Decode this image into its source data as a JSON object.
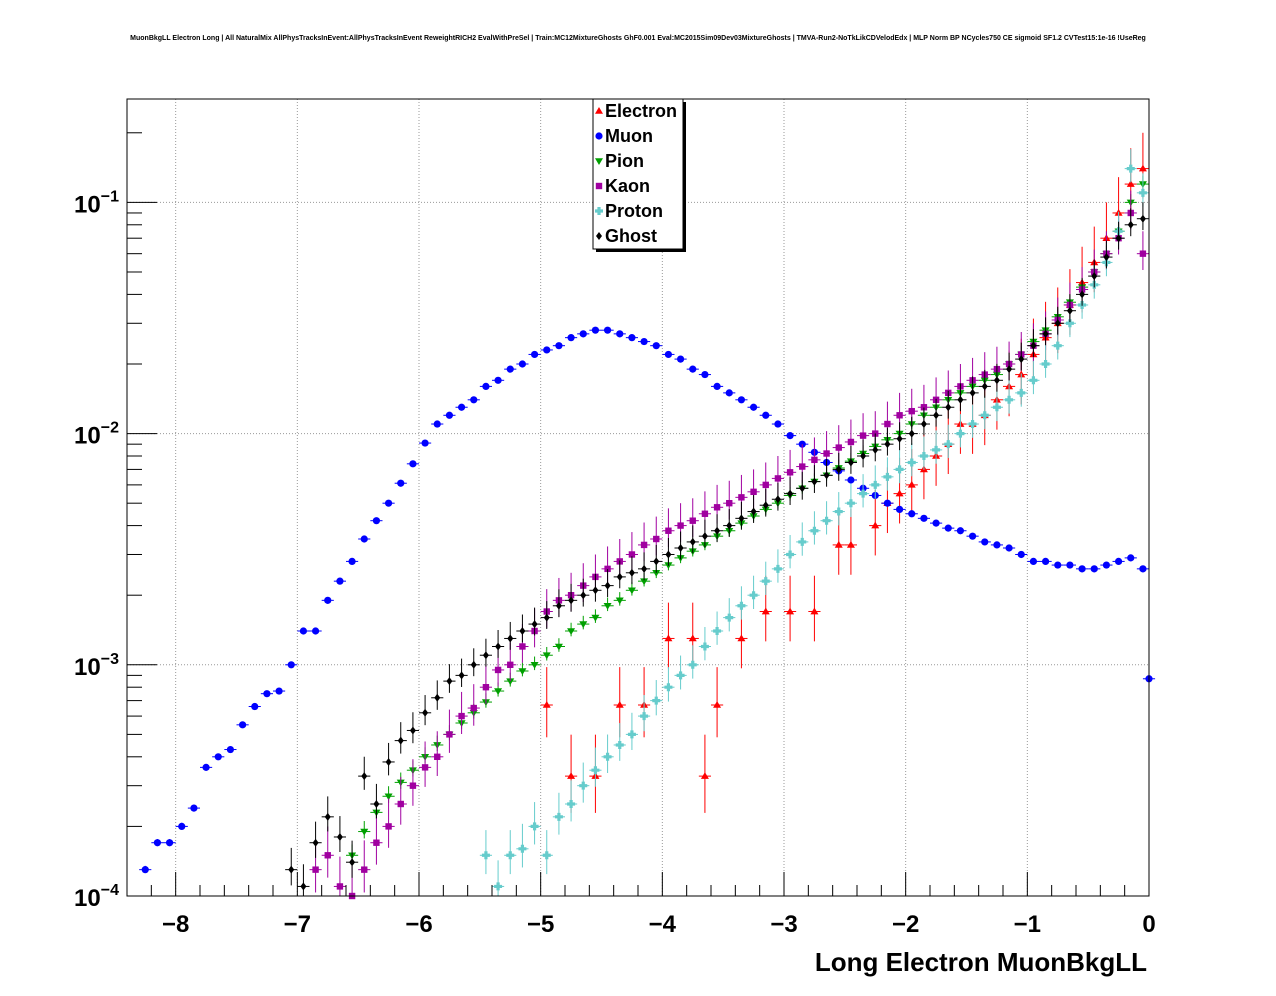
{
  "title": "MuonBkgLL Electron Long | All NaturalMix AllPhysTracksInEvent:AllPhysTracksInEvent ReweightRICH2 EvalWithPreSel | Train:MC12MixtureGhosts GhF0.001 Eval:MC2015Sim09Dev03MixtureGhosts | TMVA-Run2-NoTkLikCDVelodEdx | MLP Norm BP NCycles750 CE sigmoid SF1.2 CVTest15:1e-16 !UseReg",
  "chart_data": {
    "type": "scatter",
    "xlabel": "Long Electron MuonBkgLL",
    "ylabel": "",
    "xlim": [
      -8.4,
      0
    ],
    "ylim": [
      0.0001,
      0.28
    ],
    "ylog": true,
    "grid": true,
    "legend_position": "top-center",
    "x_ticks": [
      {
        "value": -8,
        "label": "−8"
      },
      {
        "value": -7,
        "label": "−7"
      },
      {
        "value": -6,
        "label": "−6"
      },
      {
        "value": -5,
        "label": "−5"
      },
      {
        "value": -4,
        "label": "−4"
      },
      {
        "value": -3,
        "label": "−3"
      },
      {
        "value": -2,
        "label": "−2"
      },
      {
        "value": -1,
        "label": "−1"
      },
      {
        "value": 0,
        "label": "0"
      }
    ],
    "y_ticks": [
      {
        "value": 0.0001,
        "base": "10",
        "exp": "−4"
      },
      {
        "value": 0.001,
        "base": "10",
        "exp": "−3"
      },
      {
        "value": 0.01,
        "base": "10",
        "exp": "−2"
      },
      {
        "value": 0.1,
        "base": "10",
        "exp": "−1"
      }
    ],
    "series": [
      {
        "name": "Electron",
        "color": "#ff0000",
        "marker": "triangle-up",
        "err": 0.6,
        "x": [
          -4.95,
          -4.75,
          -4.55,
          -4.35,
          -4.15,
          -3.95,
          -3.75,
          -3.65,
          -3.55,
          -3.35,
          -3.15,
          -2.95,
          -2.75,
          -2.55,
          -2.45,
          -2.25,
          -2.15,
          -2.05,
          -1.95,
          -1.85,
          -1.75,
          -1.65,
          -1.55,
          -1.45,
          -1.35,
          -1.25,
          -1.15,
          -1.05,
          -0.95,
          -0.85,
          -0.75,
          -0.65,
          -0.55,
          -0.45,
          -0.35,
          -0.25,
          -0.15,
          -0.05
        ],
        "y": [
          0.00067,
          0.00033,
          0.00033,
          0.00067,
          0.00067,
          0.0013,
          0.0013,
          0.00033,
          0.00067,
          0.0013,
          0.0017,
          0.0017,
          0.0017,
          0.0033,
          0.0033,
          0.004,
          0.005,
          0.0055,
          0.006,
          0.007,
          0.008,
          0.009,
          0.011,
          0.011,
          0.012,
          0.014,
          0.016,
          0.018,
          0.022,
          0.026,
          0.03,
          0.036,
          0.045,
          0.055,
          0.07,
          0.09,
          0.12,
          0.14
        ]
      },
      {
        "name": "Muon",
        "color": "#0000ff",
        "marker": "circle",
        "err": 0.04,
        "x": [
          -8.25,
          -8.15,
          -8.05,
          -7.95,
          -7.85,
          -7.75,
          -7.65,
          -7.55,
          -7.45,
          -7.35,
          -7.25,
          -7.15,
          -7.05,
          -6.95,
          -6.85,
          -6.75,
          -6.65,
          -6.55,
          -6.45,
          -6.35,
          -6.25,
          -6.15,
          -6.05,
          -5.95,
          -5.85,
          -5.75,
          -5.65,
          -5.55,
          -5.45,
          -5.35,
          -5.25,
          -5.15,
          -5.05,
          -4.95,
          -4.85,
          -4.75,
          -4.65,
          -4.55,
          -4.45,
          -4.35,
          -4.25,
          -4.15,
          -4.05,
          -3.95,
          -3.85,
          -3.75,
          -3.65,
          -3.55,
          -3.45,
          -3.35,
          -3.25,
          -3.15,
          -3.05,
          -2.95,
          -2.85,
          -2.75,
          -2.65,
          -2.55,
          -2.45,
          -2.35,
          -2.25,
          -2.15,
          -2.05,
          -1.95,
          -1.85,
          -1.75,
          -1.65,
          -1.55,
          -1.45,
          -1.35,
          -1.25,
          -1.15,
          -1.05,
          -0.95,
          -0.85,
          -0.75,
          -0.65,
          -0.55,
          -0.45,
          -0.35,
          -0.25,
          -0.15,
          -0.05,
          0.0
        ],
        "y": [
          0.00013,
          0.00017,
          0.00017,
          0.0002,
          0.00024,
          0.00036,
          0.0004,
          0.00043,
          0.00055,
          0.00066,
          0.00075,
          0.00077,
          0.001,
          0.0014,
          0.0014,
          0.0019,
          0.0023,
          0.0028,
          0.0035,
          0.0042,
          0.005,
          0.0061,
          0.0074,
          0.0091,
          0.011,
          0.012,
          0.013,
          0.014,
          0.016,
          0.017,
          0.019,
          0.02,
          0.022,
          0.023,
          0.024,
          0.026,
          0.027,
          0.028,
          0.028,
          0.027,
          0.026,
          0.025,
          0.024,
          0.022,
          0.021,
          0.019,
          0.018,
          0.016,
          0.015,
          0.014,
          0.013,
          0.012,
          0.011,
          0.0098,
          0.009,
          0.0083,
          0.0075,
          0.0069,
          0.0063,
          0.0058,
          0.0054,
          0.005,
          0.0047,
          0.0045,
          0.0043,
          0.0041,
          0.0039,
          0.0038,
          0.0036,
          0.0034,
          0.0033,
          0.0032,
          0.003,
          0.0028,
          0.0028,
          0.0027,
          0.0027,
          0.0026,
          0.0026,
          0.0027,
          0.0028,
          0.0029,
          0.0026,
          0.00087
        ]
      },
      {
        "name": "Pion",
        "color": "#00a000",
        "marker": "triangle-down",
        "err": 0.12,
        "x": [
          -6.55,
          -6.45,
          -6.35,
          -6.25,
          -6.15,
          -6.05,
          -5.95,
          -5.85,
          -5.75,
          -5.65,
          -5.55,
          -5.45,
          -5.35,
          -5.25,
          -5.15,
          -5.05,
          -4.95,
          -4.85,
          -4.75,
          -4.65,
          -4.55,
          -4.45,
          -4.35,
          -4.25,
          -4.15,
          -4.05,
          -3.95,
          -3.85,
          -3.75,
          -3.65,
          -3.55,
          -3.45,
          -3.35,
          -3.25,
          -3.15,
          -3.05,
          -2.95,
          -2.85,
          -2.75,
          -2.65,
          -2.55,
          -2.45,
          -2.35,
          -2.25,
          -2.15,
          -2.05,
          -1.95,
          -1.85,
          -1.75,
          -1.65,
          -1.55,
          -1.45,
          -1.35,
          -1.25,
          -1.15,
          -1.05,
          -0.95,
          -0.85,
          -0.75,
          -0.65,
          -0.55,
          -0.45,
          -0.35,
          -0.25,
          -0.15,
          -0.05
        ],
        "y": [
          0.00015,
          0.00019,
          0.00023,
          0.00027,
          0.00031,
          0.00035,
          0.0004,
          0.00045,
          0.0005,
          0.00056,
          0.00062,
          0.00069,
          0.00077,
          0.00085,
          0.00094,
          0.001,
          0.0011,
          0.0012,
          0.0014,
          0.0015,
          0.0016,
          0.0018,
          0.0019,
          0.0021,
          0.0023,
          0.0025,
          0.0027,
          0.0029,
          0.0031,
          0.0033,
          0.0036,
          0.0038,
          0.0041,
          0.0044,
          0.0047,
          0.005,
          0.0054,
          0.0058,
          0.0062,
          0.0066,
          0.0071,
          0.0076,
          0.0082,
          0.0088,
          0.0094,
          0.01,
          0.011,
          0.012,
          0.013,
          0.014,
          0.015,
          0.016,
          0.017,
          0.018,
          0.02,
          0.022,
          0.025,
          0.028,
          0.032,
          0.037,
          0.043,
          0.05,
          0.06,
          0.075,
          0.1,
          0.12
        ]
      },
      {
        "name": "Kaon",
        "color": "#a000a0",
        "marker": "square",
        "err": 0.35,
        "x": [
          -6.85,
          -6.75,
          -6.65,
          -6.55,
          -6.45,
          -6.35,
          -6.25,
          -6.15,
          -6.05,
          -5.95,
          -5.85,
          -5.75,
          -5.65,
          -5.55,
          -5.45,
          -5.35,
          -5.25,
          -5.15,
          -5.05,
          -4.95,
          -4.85,
          -4.75,
          -4.65,
          -4.55,
          -4.45,
          -4.35,
          -4.25,
          -4.15,
          -4.05,
          -3.95,
          -3.85,
          -3.75,
          -3.65,
          -3.55,
          -3.45,
          -3.35,
          -3.25,
          -3.15,
          -3.05,
          -2.95,
          -2.85,
          -2.75,
          -2.65,
          -2.55,
          -2.45,
          -2.35,
          -2.25,
          -2.15,
          -2.05,
          -1.95,
          -1.85,
          -1.75,
          -1.65,
          -1.55,
          -1.45,
          -1.35,
          -1.25,
          -1.15,
          -1.05,
          -0.95,
          -0.85,
          -0.75,
          -0.65,
          -0.55,
          -0.45,
          -0.35,
          -0.25,
          -0.15,
          -0.05
        ],
        "y": [
          0.00013,
          0.00015,
          0.00011,
          0.0001,
          0.00013,
          0.00017,
          0.0002,
          0.00025,
          0.0003,
          0.00036,
          0.0004,
          0.0005,
          0.0006,
          0.00065,
          0.0008,
          0.00095,
          0.001,
          0.0012,
          0.0014,
          0.0017,
          0.0019,
          0.002,
          0.0022,
          0.0024,
          0.0026,
          0.0028,
          0.003,
          0.0033,
          0.0035,
          0.0038,
          0.004,
          0.0042,
          0.0045,
          0.0048,
          0.005,
          0.0053,
          0.0056,
          0.006,
          0.0064,
          0.0068,
          0.0072,
          0.0077,
          0.0082,
          0.0087,
          0.0092,
          0.0098,
          0.01,
          0.011,
          0.012,
          0.0125,
          0.013,
          0.014,
          0.015,
          0.016,
          0.017,
          0.018,
          0.019,
          0.02,
          0.022,
          0.024,
          0.027,
          0.031,
          0.036,
          0.042,
          0.05,
          0.06,
          0.07,
          0.09,
          0.06
        ]
      },
      {
        "name": "Proton",
        "color": "#66cccc",
        "marker": "cross",
        "err": 0.3,
        "x": [
          -5.45,
          -5.35,
          -5.25,
          -5.15,
          -5.05,
          -4.95,
          -4.85,
          -4.75,
          -4.65,
          -4.55,
          -4.45,
          -4.35,
          -4.25,
          -4.15,
          -4.05,
          -3.95,
          -3.85,
          -3.75,
          -3.65,
          -3.55,
          -3.45,
          -3.35,
          -3.25,
          -3.15,
          -3.05,
          -2.95,
          -2.85,
          -2.75,
          -2.65,
          -2.55,
          -2.45,
          -2.35,
          -2.25,
          -2.15,
          -2.05,
          -1.95,
          -1.85,
          -1.75,
          -1.65,
          -1.55,
          -1.45,
          -1.35,
          -1.25,
          -1.15,
          -1.05,
          -0.95,
          -0.85,
          -0.75,
          -0.65,
          -0.55,
          -0.45,
          -0.35,
          -0.25,
          -0.15,
          -0.05
        ],
        "y": [
          0.00015,
          0.00011,
          0.00015,
          0.00016,
          0.0002,
          0.00015,
          0.00022,
          0.00025,
          0.0003,
          0.00035,
          0.0004,
          0.00045,
          0.0005,
          0.0006,
          0.0007,
          0.0008,
          0.0009,
          0.001,
          0.0012,
          0.0014,
          0.0016,
          0.0018,
          0.002,
          0.0023,
          0.0026,
          0.003,
          0.0034,
          0.0038,
          0.0042,
          0.0046,
          0.005,
          0.0055,
          0.006,
          0.0065,
          0.007,
          0.0075,
          0.008,
          0.0085,
          0.009,
          0.01,
          0.011,
          0.012,
          0.013,
          0.014,
          0.015,
          0.017,
          0.02,
          0.024,
          0.03,
          0.036,
          0.044,
          0.055,
          0.075,
          0.14,
          0.11
        ]
      },
      {
        "name": "Ghost",
        "color": "#000000",
        "marker": "diamond",
        "err": 0.25,
        "x": [
          -7.05,
          -6.95,
          -6.85,
          -6.75,
          -6.65,
          -6.55,
          -6.45,
          -6.35,
          -6.25,
          -6.15,
          -6.05,
          -5.95,
          -5.85,
          -5.75,
          -5.65,
          -5.55,
          -5.45,
          -5.35,
          -5.25,
          -5.15,
          -5.05,
          -4.95,
          -4.85,
          -4.75,
          -4.65,
          -4.55,
          -4.45,
          -4.35,
          -4.25,
          -4.15,
          -4.05,
          -3.95,
          -3.85,
          -3.75,
          -3.65,
          -3.55,
          -3.45,
          -3.35,
          -3.25,
          -3.15,
          -3.05,
          -2.95,
          -2.85,
          -2.75,
          -2.65,
          -2.55,
          -2.45,
          -2.35,
          -2.25,
          -2.15,
          -2.05,
          -1.95,
          -1.85,
          -1.75,
          -1.65,
          -1.55,
          -1.45,
          -1.35,
          -1.25,
          -1.15,
          -1.05,
          -0.95,
          -0.85,
          -0.75,
          -0.65,
          -0.55,
          -0.45,
          -0.35,
          -0.25,
          -0.15,
          -0.05
        ],
        "y": [
          0.00013,
          0.00011,
          0.00017,
          0.00022,
          0.00018,
          0.00014,
          0.00033,
          0.00025,
          0.00038,
          0.00047,
          0.00052,
          0.00062,
          0.00072,
          0.00085,
          0.0009,
          0.001,
          0.0011,
          0.0012,
          0.0013,
          0.0014,
          0.0015,
          0.0016,
          0.0018,
          0.0019,
          0.002,
          0.0021,
          0.0022,
          0.0024,
          0.0025,
          0.0026,
          0.0028,
          0.003,
          0.0032,
          0.0034,
          0.0036,
          0.0038,
          0.004,
          0.0043,
          0.0046,
          0.0049,
          0.0052,
          0.0055,
          0.0058,
          0.0062,
          0.0066,
          0.007,
          0.0075,
          0.008,
          0.0085,
          0.009,
          0.0095,
          0.01,
          0.011,
          0.012,
          0.013,
          0.014,
          0.015,
          0.016,
          0.017,
          0.019,
          0.021,
          0.024,
          0.027,
          0.03,
          0.034,
          0.04,
          0.048,
          0.058,
          0.07,
          0.08,
          0.085
        ]
      }
    ]
  }
}
